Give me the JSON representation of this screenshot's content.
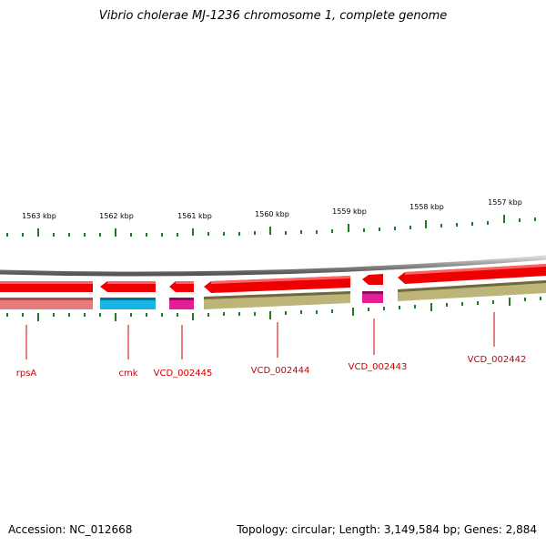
{
  "title": "Vibrio cholerae MJ-1236 chromosome 1, complete genome",
  "footer": {
    "accession": "Accession: NC_012668",
    "summary": "Topology: circular; Length: 3,149,584 bp; Genes: 2,884"
  },
  "colors": {
    "backbone": "#8a8a8a",
    "tick": "#1f7a1f",
    "gene_label": "#cc0000",
    "rpsA": "#e87b7b",
    "cmk": "#19b4e6",
    "pink": "#e61e96",
    "olive": "#bdb47a",
    "red": "#ee0000"
  },
  "scale": {
    "kbp_labels": [
      "1563 kbp",
      "1562 kbp",
      "1561 kbp",
      "1560 kbp",
      "1559 kbp",
      "1558 kbp",
      "1557 kbp"
    ]
  },
  "genes": [
    {
      "name": "rpsA"
    },
    {
      "name": "cmk"
    },
    {
      "name": "VCD_002445"
    },
    {
      "name": "VCD_002444"
    },
    {
      "name": "VCD_002443"
    },
    {
      "name": "VCD_002442"
    }
  ]
}
